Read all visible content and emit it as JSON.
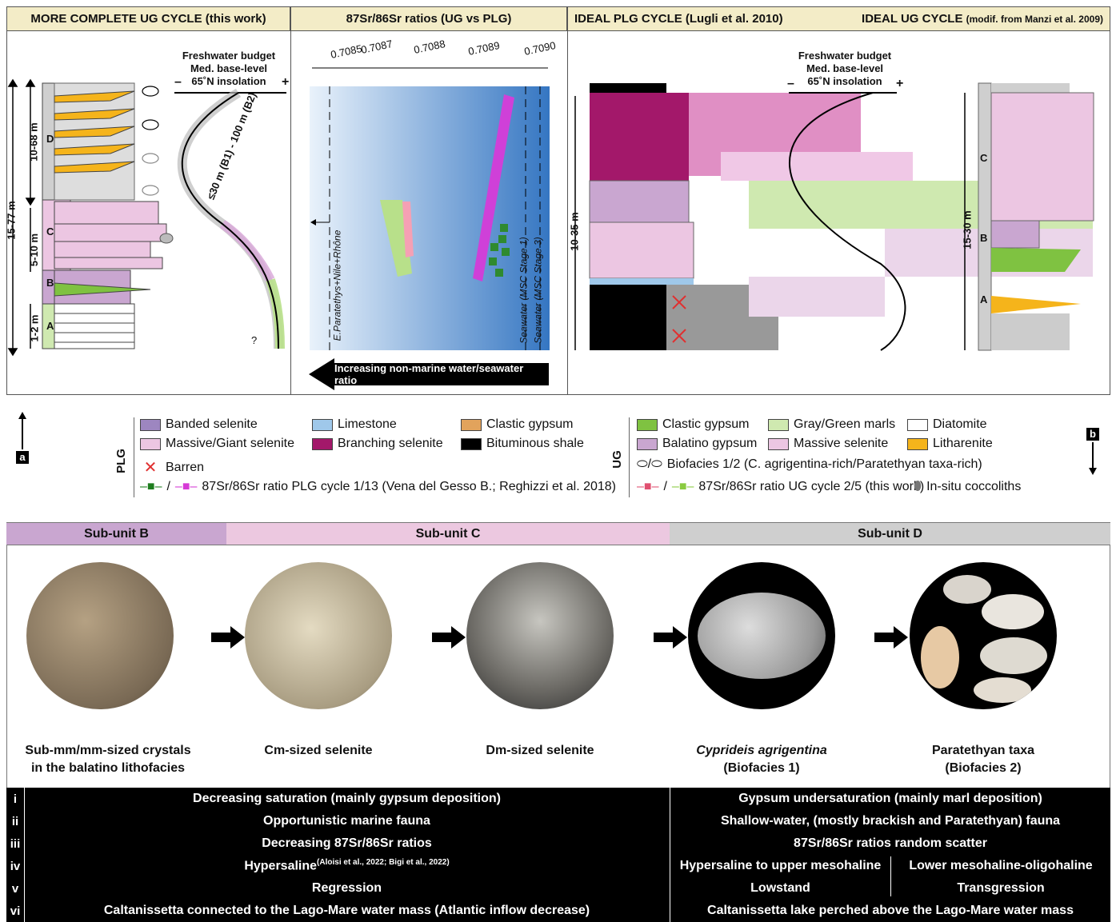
{
  "headers": {
    "panel_a": "MORE COMPLETE UG CYCLE (this work)",
    "panel_sr": "87Sr/86Sr ratios (UG vs PLG)",
    "panel_plg": "IDEAL PLG CYCLE (Lugli et al. 2010)",
    "panel_ug": "IDEAL UG CYCLE",
    "panel_ug_suffix": "(modif. from Manzi et al. 2009)"
  },
  "panel_a": {
    "depth_labels": [
      "15-77 m",
      "10-68 m",
      "5-10 m",
      "1-2 m"
    ],
    "units": [
      "D",
      "C",
      "B",
      "A"
    ],
    "budget_title": [
      "Freshwater budget",
      "Med. base-level",
      "65˚N insolation"
    ],
    "minus": "–",
    "plus": "+",
    "curve_label": "≤30 m (B1) - 100 m (B2)",
    "question": "?"
  },
  "panel_sr": {
    "ticks": [
      "0.7085",
      "0.7087",
      "0.7088",
      "0.7089",
      "0.7090"
    ],
    "label_paratethys": "E.Paratethys+Nile+Rhône",
    "label_sea1": "Seawater (MSC Stage 1)",
    "label_sea3": "Seawater (MSC Stage 3)",
    "arrow_text": "Increasing non-marine water/seawater ratio"
  },
  "panel_plg": {
    "budget_title": [
      "Freshwater budget",
      "Med. base-level",
      "65˚N insolation"
    ],
    "minus": "–",
    "plus": "+",
    "depth_plg": "10-35 m",
    "depth_ug": "15-30 m",
    "units": [
      "C",
      "B",
      "A"
    ]
  },
  "legend": {
    "a_label": "a",
    "b_label": "b",
    "plg_title": "PLG",
    "ug_title": "UG",
    "plg_items": [
      "Banded selenite",
      "Limestone",
      "Clastic gypsum",
      "Massive/Giant selenite",
      "Branching selenite",
      "Bituminous shale",
      "Barren"
    ],
    "plg_sr": "87Sr/86Sr ratio PLG cycle 1/13 (Vena del Gesso B.; Reghizzi et al. 2018)",
    "ug_items": [
      "Clastic gypsum",
      "Gray/Green marls",
      "Diatomite",
      "Balatino gypsum",
      "Massive selenite",
      "Litharenite"
    ],
    "biofacies": "Biofacies 1/2 (C. agrigentina-rich/Paratethyan taxa-rich)",
    "ug_sr": "87Sr/86Sr ratio UG cycle 2/5 (this work)",
    "coccoliths": "In-situ coccoliths"
  },
  "subunits": [
    "Sub-unit B",
    "Sub-unit C",
    "Sub-unit D"
  ],
  "captions": [
    [
      "Sub-mm/mm-sized crystals",
      "in the balatino lithofacies"
    ],
    [
      "Cm-sized selenite"
    ],
    [
      "Dm-sized selenite"
    ],
    [
      "Cyprideis agrigentina",
      "(Biofacies 1)"
    ],
    [
      "Paratethyan taxa",
      "(Biofacies 2)"
    ]
  ],
  "table": [
    {
      "n": "i",
      "left": "Decreasing saturation (mainly gypsum deposition)",
      "right": "Gypsum undersaturation (mainly marl deposition)"
    },
    {
      "n": "ii",
      "left": "Opportunistic marine fauna",
      "right": "Shallow-water, (mostly brackish and Paratethyan) fauna"
    },
    {
      "n": "iii",
      "left": "Decreasing 87Sr/86Sr ratios",
      "right": "87Sr/86Sr ratios random scatter"
    },
    {
      "n": "iv",
      "left": "Hypersaline",
      "left_sup": "(Aloisi et al., 2022; Bigi et al., 2022)",
      "right_a": "Hypersaline to upper mesohaline",
      "right_b": "Lower mesohaline-oligohaline"
    },
    {
      "n": "v",
      "left": "Regression",
      "right_a": "Lowstand",
      "right_b": "Transgression"
    },
    {
      "n": "vi",
      "left": "Caltanissetta connected to the Lago-Mare water mass (Atlantic inflow decrease)",
      "right": "Caltanissetta lake perched above the Lago-Mare water mass"
    }
  ],
  "colors": {
    "header_bg": "#f3ecc7",
    "sub_b": "#c9a6d0",
    "sub_c": "#ecc8e0",
    "sub_d": "#cfcfcf",
    "plg_magenta": "#a3186a",
    "ug_green": "#7fc241",
    "ug_orange": "#f5b41b"
  }
}
